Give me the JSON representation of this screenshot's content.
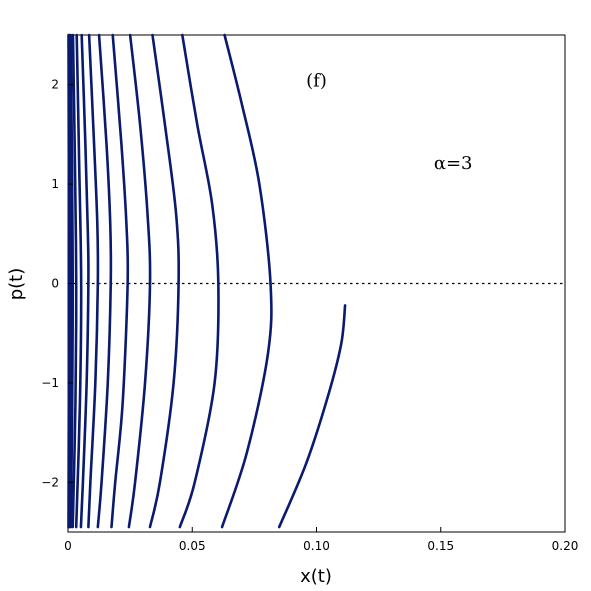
{
  "chart_data": {
    "type": "line",
    "title": "",
    "xlabel": "x(t)",
    "ylabel": "p(t)",
    "xlim": [
      0,
      0.2
    ],
    "ylim": [
      -2.5,
      2.5
    ],
    "x_ticks": [
      0,
      0.05,
      0.1,
      0.15,
      0.2
    ],
    "x_tick_labels": [
      "0",
      "0.05",
      "0.10",
      "0.15",
      "0.20"
    ],
    "y_ticks": [
      -2,
      -1,
      0,
      1,
      2
    ],
    "y_tick_labels": [
      "−2",
      "−1",
      "0",
      "1",
      "2"
    ],
    "grid": false,
    "reference_line": {
      "y": 0,
      "style": "dotted"
    },
    "annotations": [
      {
        "text": "(f)",
        "x": 0.1,
        "y": 1.98
      },
      {
        "text": "α=3",
        "x": 0.155,
        "y": 1.15
      }
    ],
    "line_color": "#0a1a6e",
    "series": [
      {
        "points": [
          [
            0.063,
            2.5
          ],
          [
            0.07,
            1.8
          ],
          [
            0.077,
            1.0
          ],
          [
            0.0815,
            0.0
          ],
          [
            0.0805,
            -0.7
          ],
          [
            0.072,
            -1.7
          ],
          [
            0.062,
            -2.45
          ]
        ]
      },
      {
        "points": [
          [
            0.046,
            2.5
          ],
          [
            0.052,
            1.6
          ],
          [
            0.058,
            0.8
          ],
          [
            0.0605,
            0.0
          ],
          [
            0.059,
            -1.0
          ],
          [
            0.051,
            -2.0
          ],
          [
            0.045,
            -2.45
          ]
        ]
      },
      {
        "points": [
          [
            0.034,
            2.5
          ],
          [
            0.039,
            1.6
          ],
          [
            0.0435,
            0.7
          ],
          [
            0.0445,
            0.0
          ],
          [
            0.0425,
            -1.0
          ],
          [
            0.037,
            -2.0
          ],
          [
            0.033,
            -2.45
          ]
        ]
      },
      {
        "points": [
          [
            0.025,
            2.5
          ],
          [
            0.029,
            1.6
          ],
          [
            0.032,
            0.7
          ],
          [
            0.033,
            0.0
          ],
          [
            0.031,
            -1.0
          ],
          [
            0.027,
            -2.0
          ],
          [
            0.0245,
            -2.45
          ]
        ]
      },
      {
        "points": [
          [
            0.018,
            2.5
          ],
          [
            0.0215,
            1.4
          ],
          [
            0.0235,
            0.6
          ],
          [
            0.024,
            0.0
          ],
          [
            0.022,
            -1.2
          ],
          [
            0.019,
            -2.0
          ],
          [
            0.0175,
            -2.45
          ]
        ]
      },
      {
        "points": [
          [
            0.0125,
            2.5
          ],
          [
            0.0155,
            1.4
          ],
          [
            0.017,
            0.6
          ],
          [
            0.0172,
            0.0
          ],
          [
            0.016,
            -1.0
          ],
          [
            0.0135,
            -2.0
          ],
          [
            0.012,
            -2.45
          ]
        ]
      },
      {
        "points": [
          [
            0.0085,
            2.5
          ],
          [
            0.0105,
            1.4
          ],
          [
            0.0118,
            0.6
          ],
          [
            0.012,
            0.0
          ],
          [
            0.011,
            -1.0
          ],
          [
            0.009,
            -2.0
          ],
          [
            0.0082,
            -2.45
          ]
        ]
      },
      {
        "points": [
          [
            0.0055,
            2.5
          ],
          [
            0.007,
            1.4
          ],
          [
            0.008,
            0.5
          ],
          [
            0.0082,
            0.0
          ],
          [
            0.0075,
            -1.0
          ],
          [
            0.006,
            -2.0
          ],
          [
            0.0052,
            -2.45
          ]
        ]
      },
      {
        "points": [
          [
            0.0035,
            2.5
          ],
          [
            0.0045,
            1.2
          ],
          [
            0.0053,
            0.0
          ],
          [
            0.0048,
            -1.2
          ],
          [
            0.0033,
            -2.45
          ]
        ]
      },
      {
        "points": [
          [
            0.002,
            2.5
          ],
          [
            0.0028,
            1.2
          ],
          [
            0.0033,
            0.0
          ],
          [
            0.003,
            -1.2
          ],
          [
            0.0019,
            -2.45
          ]
        ]
      },
      {
        "points": [
          [
            0.0011,
            2.5
          ],
          [
            0.0016,
            1.2
          ],
          [
            0.0019,
            0.0
          ],
          [
            0.0017,
            -1.2
          ],
          [
            0.0011,
            -2.45
          ]
        ]
      },
      {
        "points": [
          [
            0.0005,
            2.5
          ],
          [
            0.0008,
            1.0
          ],
          [
            0.001,
            0.0
          ],
          [
            0.0009,
            -1.0
          ],
          [
            0.0005,
            -2.45
          ]
        ]
      },
      {
        "points": [
          [
            0.0002,
            2.5
          ],
          [
            0.0004,
            0.0
          ],
          [
            0.0002,
            -2.45
          ]
        ]
      },
      {
        "points": [
          [
            0.1115,
            -0.22
          ],
          [
            0.11,
            -0.6
          ],
          [
            0.105,
            -1.1
          ],
          [
            0.096,
            -1.8
          ],
          [
            0.085,
            -2.45
          ]
        ]
      }
    ]
  }
}
